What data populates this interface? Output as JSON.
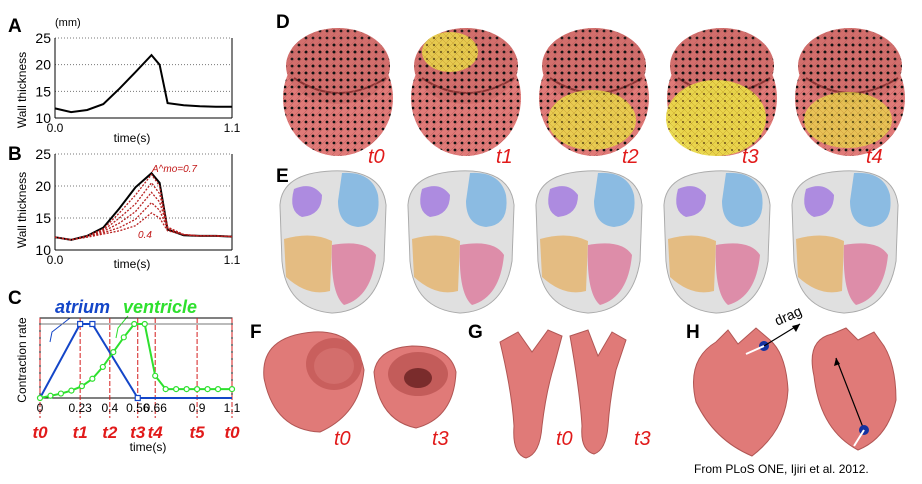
{
  "panel_labels": {
    "a": "A",
    "b": "B",
    "c": "C",
    "d": "D",
    "e": "E",
    "f": "F",
    "g": "G",
    "h": "H"
  },
  "time_labels": [
    "t0",
    "t1",
    "t2",
    "t3",
    "t4"
  ],
  "panel_f": {
    "times": [
      "t0",
      "t3"
    ]
  },
  "panel_g": {
    "times": [
      "t0",
      "t3"
    ]
  },
  "panel_h": {
    "annotation": "drag"
  },
  "credit": "From PLoS ONE, Ijiri et al. 2012.",
  "colors": {
    "heart": "#e07a78",
    "yellow": "#f2e64a",
    "red_label": "#e11a1a",
    "atrium": "#1446c8",
    "ventricle": "#2ee02e",
    "purple": "#8f5fd8",
    "blue": "#5fa4dc",
    "orange": "#e0a24a",
    "pink": "#d45a86"
  },
  "chart_data": [
    {
      "panel": "A",
      "type": "line",
      "ylabel": "Wall thickness",
      "yunit": "(mm)",
      "xlabel": "time(s)",
      "ylim": [
        10,
        25
      ],
      "yticks": [
        "10",
        "15",
        "20",
        "25"
      ],
      "xlim": [
        0,
        1.1
      ],
      "xtick_labels": [
        "0.0",
        "1.1"
      ],
      "grid": "horizontal-dotted",
      "series": [
        {
          "x": [
            0,
            0.1,
            0.2,
            0.3,
            0.4,
            0.5,
            0.6,
            0.65,
            0.7,
            0.8,
            0.9,
            1.0,
            1.1
          ],
          "y": [
            11.8,
            11.1,
            11.5,
            12.6,
            15.5,
            18.6,
            21.8,
            20,
            12.8,
            12.4,
            12.2,
            12.1,
            12.1
          ]
        }
      ]
    },
    {
      "panel": "B",
      "type": "line",
      "ylabel": "Wall thickness",
      "xlabel": "time(s)",
      "ylim": [
        10,
        25
      ],
      "yticks": [
        "10",
        "15",
        "20",
        "25"
      ],
      "xlim": [
        0,
        1.1
      ],
      "xtick_labels": [
        "0.0",
        "1.1"
      ],
      "grid": "horizontal-dotted",
      "annotations": [
        "A^mo=0.7",
        "0.4"
      ],
      "series": [
        {
          "x": [
            0,
            0.1,
            0.2,
            0.3,
            0.4,
            0.5,
            0.6,
            0.65,
            0.7,
            0.8,
            0.9,
            1.0,
            1.1
          ],
          "y": [
            12,
            11.6,
            12.2,
            13.5,
            16.5,
            19.8,
            22,
            20.5,
            13.2,
            12.3,
            12.2,
            12.2,
            12.1
          ]
        },
        {
          "x": [
            0,
            0.1,
            0.2,
            0.3,
            0.4,
            0.5,
            0.6,
            0.65,
            0.7,
            0.8,
            0.9,
            1.0,
            1.1
          ],
          "y": [
            12,
            11.6,
            12.2,
            13.3,
            15.8,
            18.6,
            21.8,
            20,
            13.4,
            12.4,
            12.2,
            12.2,
            12.1
          ]
        },
        {
          "x": [
            0,
            0.1,
            0.2,
            0.3,
            0.4,
            0.5,
            0.6,
            0.65,
            0.7,
            0.8,
            0.9,
            1.0,
            1.1
          ],
          "y": [
            12,
            11.6,
            12.2,
            13.1,
            15,
            17.2,
            20.5,
            18.8,
            13.6,
            12.4,
            12.2,
            12.2,
            12.1
          ]
        },
        {
          "x": [
            0,
            0.1,
            0.2,
            0.3,
            0.4,
            0.5,
            0.6,
            0.65,
            0.7,
            0.8,
            0.9,
            1.0,
            1.1
          ],
          "y": [
            12,
            11.6,
            12.1,
            12.9,
            14.2,
            16,
            19,
            17.5,
            13.5,
            12.4,
            12.2,
            12.2,
            12.1
          ]
        },
        {
          "x": [
            0,
            0.1,
            0.2,
            0.3,
            0.4,
            0.5,
            0.6,
            0.65,
            0.7,
            0.8,
            0.9,
            1.0,
            1.1
          ],
          "y": [
            12,
            11.6,
            12.1,
            12.7,
            13.5,
            14.8,
            17.4,
            16.2,
            13.3,
            12.4,
            12.2,
            12.2,
            12.1
          ]
        },
        {
          "x": [
            0,
            0.1,
            0.2,
            0.3,
            0.4,
            0.5,
            0.6,
            0.65,
            0.7,
            0.8,
            0.9,
            1.0,
            1.1
          ],
          "y": [
            12,
            11.6,
            12,
            12.5,
            13,
            13.8,
            15.8,
            15,
            13,
            12.4,
            12.2,
            12.2,
            12.1
          ]
        }
      ]
    },
    {
      "panel": "C",
      "type": "line",
      "ylabel": "Contraction rate",
      "xlabel": "time(s)",
      "ylim": [
        0,
        1
      ],
      "xlim": [
        0,
        1.1
      ],
      "xtick_labels": [
        "0",
        "0.23",
        "0.4",
        "0.56",
        "0.66",
        "0.9",
        "1.1"
      ],
      "xticks": [
        0,
        0.23,
        0.4,
        0.56,
        0.66,
        0.9,
        1.1
      ],
      "phase_labels": [
        "t0",
        "t1",
        "t2",
        "t3",
        "t4",
        "t5",
        "t0"
      ],
      "series": [
        {
          "name": "atrium",
          "x": [
            0,
            0.23,
            0.3,
            0.56,
            1.1
          ],
          "y": [
            0,
            1,
            1,
            0,
            0
          ]
        },
        {
          "name": "ventricle",
          "x": [
            0,
            0.06,
            0.12,
            0.18,
            0.24,
            0.3,
            0.36,
            0.42,
            0.48,
            0.54,
            0.6,
            0.66,
            0.72,
            0.78,
            0.84,
            0.9,
            0.96,
            1.02,
            1.1
          ],
          "y": [
            0,
            0.03,
            0.06,
            0.1,
            0.16,
            0.26,
            0.42,
            0.62,
            0.82,
            1,
            1,
            0.3,
            0.12,
            0.12,
            0.12,
            0.12,
            0.12,
            0.12,
            0.12
          ]
        }
      ]
    }
  ]
}
